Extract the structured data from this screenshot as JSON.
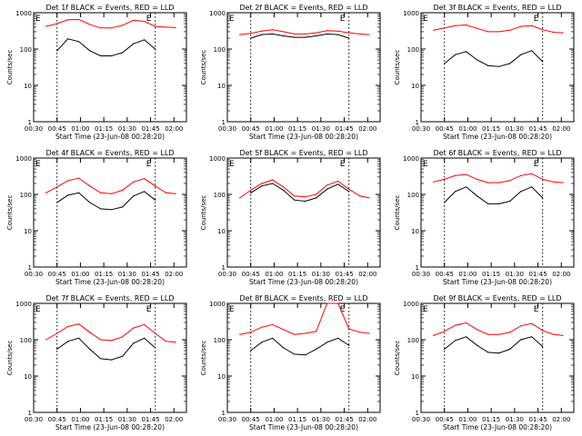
{
  "figure": {
    "xlabel": "Start Time (23-Jun-08 00:28:20)",
    "ylabel": "Counts/sec",
    "x_ticks": [
      "00:30",
      "00:45",
      "01:00",
      "01:15",
      "01:30",
      "01:45",
      "02:00"
    ],
    "y_ticks": [
      "1",
      "10",
      "100",
      "1000"
    ],
    "marker_labels": [
      "E",
      "E"
    ],
    "marker_times": [
      "00:45",
      "01:48"
    ],
    "colors": {
      "events": "#000000",
      "lld": "#ff0000"
    }
  },
  "chart_data": [
    {
      "type": "line",
      "title": "Det 1f BLACK = Events, RED = LLD",
      "ylim": [
        1,
        1000
      ],
      "y_scale": "log",
      "x": [
        "00:38",
        "00:45",
        "00:52",
        "00:59",
        "01:06",
        "01:13",
        "01:20",
        "01:27",
        "01:34",
        "01:41",
        "01:48",
        "01:55",
        "02:01"
      ],
      "series": [
        {
          "values": [
            null,
            90,
            190,
            160,
            90,
            65,
            65,
            80,
            140,
            180,
            100,
            null,
            null
          ]
        },
        {
          "values": [
            420,
            500,
            640,
            650,
            480,
            380,
            380,
            450,
            620,
            580,
            420,
            400,
            390
          ]
        }
      ]
    },
    {
      "type": "line",
      "title": "Det 2f BLACK = Events, RED = LLD",
      "ylim": [
        1,
        1000
      ],
      "y_scale": "log",
      "x": [
        "00:38",
        "00:45",
        "00:52",
        "00:59",
        "01:06",
        "01:13",
        "01:20",
        "01:27",
        "01:34",
        "01:41",
        "01:48",
        "01:55",
        "02:01"
      ],
      "series": [
        {
          "values": [
            null,
            200,
            250,
            260,
            230,
            210,
            210,
            230,
            260,
            250,
            200,
            null,
            null
          ]
        },
        {
          "values": [
            250,
            270,
            310,
            340,
            300,
            260,
            260,
            280,
            320,
            310,
            280,
            260,
            250
          ]
        }
      ]
    },
    {
      "type": "line",
      "title": "Det 3f BLACK = Events, RED = LLD",
      "ylim": [
        1,
        1000
      ],
      "y_scale": "log",
      "x": [
        "00:38",
        "00:45",
        "00:52",
        "00:59",
        "01:06",
        "01:13",
        "01:20",
        "01:27",
        "01:34",
        "01:41",
        "01:48",
        "01:55",
        "02:01"
      ],
      "series": [
        {
          "values": [
            null,
            40,
            70,
            85,
            50,
            35,
            33,
            40,
            70,
            90,
            45,
            null,
            null
          ]
        },
        {
          "values": [
            330,
            380,
            440,
            460,
            370,
            300,
            300,
            330,
            420,
            440,
            340,
            290,
            280
          ]
        }
      ]
    },
    {
      "type": "line",
      "title": "Det 4f BLACK = Events, RED = LLD",
      "ylim": [
        1,
        1000
      ],
      "y_scale": "log",
      "x": [
        "00:38",
        "00:45",
        "00:52",
        "00:59",
        "01:06",
        "01:13",
        "01:20",
        "01:27",
        "01:34",
        "01:41",
        "01:48",
        "01:55",
        "02:01"
      ],
      "series": [
        {
          "values": [
            null,
            60,
            95,
            110,
            60,
            40,
            38,
            45,
            90,
            120,
            70,
            null,
            null
          ]
        },
        {
          "values": [
            110,
            160,
            240,
            280,
            170,
            110,
            105,
            130,
            220,
            270,
            170,
            110,
            105
          ]
        }
      ]
    },
    {
      "type": "line",
      "title": "Det 5f BLACK = Events, RED = LLD",
      "ylim": [
        1,
        1000
      ],
      "y_scale": "log",
      "x": [
        "00:38",
        "00:45",
        "00:52",
        "00:59",
        "01:06",
        "01:13",
        "01:20",
        "01:27",
        "01:34",
        "01:41",
        "01:48",
        "01:55",
        "02:01"
      ],
      "series": [
        {
          "values": [
            null,
            110,
            170,
            200,
            130,
            70,
            65,
            80,
            140,
            190,
            120,
            null,
            null
          ]
        },
        {
          "values": [
            80,
            130,
            200,
            250,
            160,
            90,
            85,
            100,
            180,
            230,
            140,
            90,
            80
          ]
        }
      ]
    },
    {
      "type": "line",
      "title": "Det 6f BLACK = Events, RED = LLD",
      "ylim": [
        1,
        1000
      ],
      "y_scale": "log",
      "x": [
        "00:38",
        "00:45",
        "00:52",
        "00:59",
        "01:06",
        "01:13",
        "01:20",
        "01:27",
        "01:34",
        "01:41",
        "01:48",
        "01:55",
        "02:01"
      ],
      "series": [
        {
          "values": [
            null,
            60,
            120,
            160,
            90,
            55,
            55,
            65,
            120,
            160,
            80,
            null,
            null
          ]
        },
        {
          "values": [
            220,
            260,
            330,
            350,
            260,
            210,
            210,
            240,
            330,
            370,
            260,
            220,
            210
          ]
        }
      ]
    },
    {
      "type": "line",
      "title": "Det 7f BLACK = Events, RED = LLD",
      "ylim": [
        1,
        1000
      ],
      "y_scale": "log",
      "x": [
        "00:38",
        "00:45",
        "00:52",
        "00:59",
        "01:06",
        "01:13",
        "01:20",
        "01:27",
        "01:34",
        "01:41",
        "01:48",
        "01:55",
        "02:01"
      ],
      "series": [
        {
          "values": [
            null,
            55,
            90,
            110,
            55,
            30,
            28,
            35,
            80,
            110,
            60,
            null,
            null
          ]
        },
        {
          "values": [
            100,
            150,
            230,
            270,
            160,
            100,
            95,
            120,
            210,
            260,
            150,
            90,
            85
          ]
        }
      ]
    },
    {
      "type": "line",
      "title": "Det 8f BLACK = Events, RED = LLD",
      "ylim": [
        1,
        1000
      ],
      "y_scale": "log",
      "x": [
        "00:38",
        "00:45",
        "00:52",
        "00:59",
        "01:06",
        "01:13",
        "01:20",
        "01:27",
        "01:34",
        "01:41",
        "01:48",
        "01:55",
        "02:01"
      ],
      "series": [
        {
          "values": [
            null,
            50,
            85,
            110,
            60,
            40,
            38,
            55,
            85,
            110,
            70,
            null,
            null
          ]
        },
        {
          "values": [
            140,
            160,
            220,
            260,
            190,
            140,
            150,
            170,
            1000,
            1000,
            200,
            160,
            150
          ]
        }
      ]
    },
    {
      "type": "line",
      "title": "Det 9f BLACK = Events, RED = LLD",
      "ylim": [
        1,
        1000
      ],
      "y_scale": "log",
      "x": [
        "00:38",
        "00:45",
        "00:52",
        "00:59",
        "01:06",
        "01:13",
        "01:20",
        "01:27",
        "01:34",
        "01:41",
        "01:48",
        "01:55",
        "02:01"
      ],
      "series": [
        {
          "values": [
            null,
            55,
            95,
            120,
            70,
            45,
            43,
            55,
            100,
            120,
            65,
            null,
            null
          ]
        },
        {
          "values": [
            130,
            170,
            250,
            290,
            190,
            140,
            140,
            160,
            240,
            280,
            180,
            140,
            130
          ]
        }
      ]
    }
  ]
}
